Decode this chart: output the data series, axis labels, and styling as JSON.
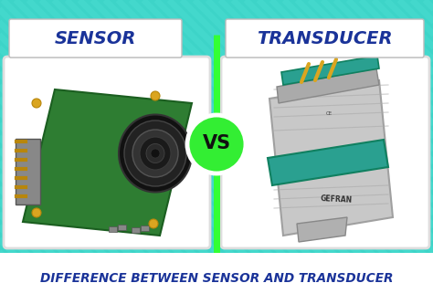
{
  "bg_color": "#3DD4C8",
  "bottom_bar_color": "#FFFFFF",
  "bottom_text": "DIFFERENCE BETWEEN SENSOR AND TRANSDUCER",
  "bottom_text_color": "#1A3399",
  "label_left": "SENSOR",
  "label_right": "TRANSDUCER",
  "label_text_color": "#1A3399",
  "label_bg_color": "#FFFFFF",
  "vs_text": "VS",
  "vs_circle_color": "#33EE33",
  "vs_text_color": "#111111",
  "divider_color": "#33FF33",
  "stripe_color": "#35C8BC",
  "figsize": [
    4.74,
    3.33
  ],
  "dpi": 100,
  "img_box_color": "#FFFFFF",
  "img_box_edge": "#DDDDDD"
}
